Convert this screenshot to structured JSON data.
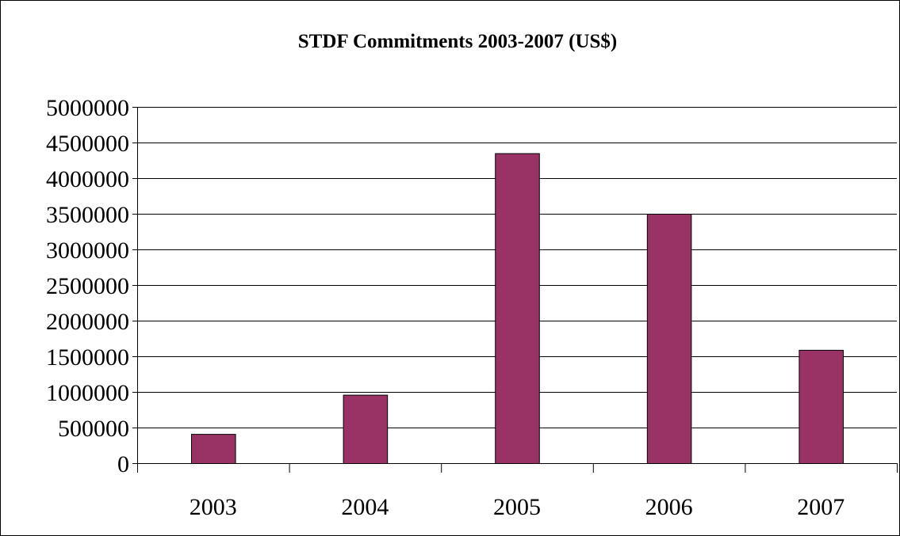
{
  "chart_data": {
    "type": "bar",
    "title": "STDF Commitments 2003-2007 (US$)",
    "xlabel": "",
    "ylabel": "",
    "categories": [
      "2003",
      "2004",
      "2005",
      "2006",
      "2007"
    ],
    "values": [
      410000,
      960000,
      4350000,
      3500000,
      1590000
    ],
    "ylim": [
      0,
      5000000
    ],
    "y_ticks": [
      0,
      500000,
      1000000,
      1500000,
      2000000,
      2500000,
      3000000,
      3500000,
      4000000,
      4500000,
      5000000
    ],
    "y_tick_labels": [
      "0",
      "500000",
      "1000000",
      "1500000",
      "2000000",
      "2500000",
      "3000000",
      "3500000",
      "4000000",
      "4500000",
      "5000000"
    ],
    "grid": true,
    "legend": "none",
    "bar_color": "#993366"
  }
}
